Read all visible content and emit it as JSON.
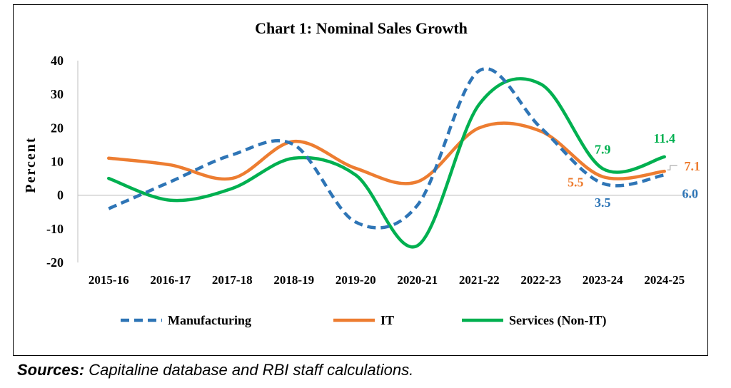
{
  "chart_data": {
    "type": "line",
    "title": "Chart 1: Nominal Sales Growth",
    "ylabel": "Percent",
    "xlabel": "",
    "ylim": [
      -20,
      40
    ],
    "yticks": [
      40,
      30,
      20,
      10,
      0,
      -10,
      -20
    ],
    "categories": [
      "2015-16",
      "2016-17",
      "2017-18",
      "2018-19",
      "2019-20",
      "2020-21",
      "2021-22",
      "2022-23",
      "2023-24",
      "2024-25"
    ],
    "series": [
      {
        "name": "Manufacturing",
        "color": "#2e75b6",
        "dash": true,
        "values": [
          -4,
          4,
          12,
          15,
          -8,
          -3,
          37,
          20,
          3.5,
          6.0
        ]
      },
      {
        "name": "IT",
        "color": "#ed7d31",
        "dash": false,
        "values": [
          11,
          9,
          5,
          16,
          8,
          4,
          20,
          19,
          5.5,
          7.1
        ]
      },
      {
        "name": "Services (Non-IT)",
        "color": "#00b050",
        "dash": false,
        "values": [
          5,
          -1.5,
          2,
          11,
          6,
          -15,
          27,
          33,
          7.9,
          11.4
        ]
      }
    ],
    "data_labels": [
      {
        "series": 1,
        "index": 8,
        "text": "5.5"
      },
      {
        "series": 0,
        "index": 8,
        "text": "3.5"
      },
      {
        "series": 2,
        "index": 8,
        "text": "7.9"
      },
      {
        "series": 2,
        "index": 9,
        "text": "11.4"
      },
      {
        "series": 1,
        "index": 9,
        "text": "7.1"
      },
      {
        "series": 0,
        "index": 9,
        "text": "6.0"
      }
    ],
    "grid": false,
    "legend_position": "bottom"
  },
  "source": {
    "label": "Sources:",
    "text": " Capitaline database and RBI staff calculations."
  }
}
